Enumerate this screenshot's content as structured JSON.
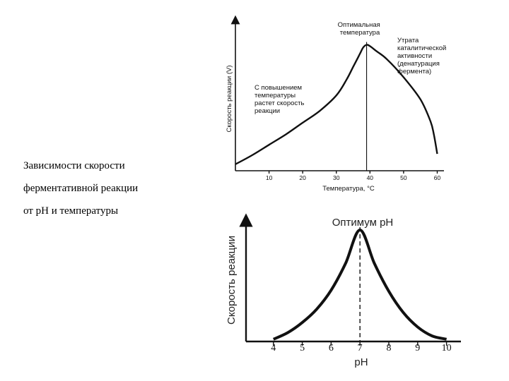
{
  "caption": {
    "lines": [
      "Зависимости скорости",
      "ферментативной реакции",
      "от рН и температуры"
    ]
  },
  "chart_data": [
    {
      "type": "line",
      "ylabel": "Скорость реакции (V)",
      "xlabel": "Температура, °С",
      "x_ticks": [
        10,
        20,
        30,
        40,
        50,
        60
      ],
      "xlim": [
        0,
        62
      ],
      "ylim": [
        0,
        1
      ],
      "x": [
        0,
        5,
        10,
        15,
        20,
        25,
        30,
        33,
        35,
        37,
        38,
        39,
        40,
        42,
        45,
        50,
        55,
        58,
        59,
        60
      ],
      "y": [
        0.05,
        0.12,
        0.2,
        0.28,
        0.37,
        0.46,
        0.58,
        0.7,
        0.8,
        0.9,
        0.95,
        0.97,
        0.96,
        0.92,
        0.86,
        0.72,
        0.55,
        0.38,
        0.28,
        0.13
      ],
      "optimum_x": 39,
      "annotations": {
        "optimum": [
          "Оптимальная",
          "температура"
        ],
        "loss": [
          "Утрата",
          "каталитической",
          "активности",
          "(денатурация",
          "фермента)"
        ],
        "rise": [
          "С повышением",
          "температуры",
          "растет скорость",
          "реакции"
        ]
      }
    },
    {
      "type": "line",
      "ylabel": "Скорость реакции",
      "xlabel": "pH",
      "x_ticks": [
        4,
        5,
        6,
        7,
        8,
        9,
        10
      ],
      "xlim": [
        3.05,
        10.5
      ],
      "ylim": [
        0,
        1
      ],
      "x": [
        4,
        4.5,
        5,
        5.5,
        6,
        6.5,
        7,
        7.5,
        8,
        8.5,
        9,
        9.5,
        10
      ],
      "y": [
        0.02,
        0.08,
        0.17,
        0.29,
        0.46,
        0.7,
        1.0,
        0.7,
        0.45,
        0.26,
        0.13,
        0.05,
        0.02
      ],
      "optimum_x": 7,
      "annotations": {
        "optimum": "Оптимум рН"
      }
    }
  ]
}
